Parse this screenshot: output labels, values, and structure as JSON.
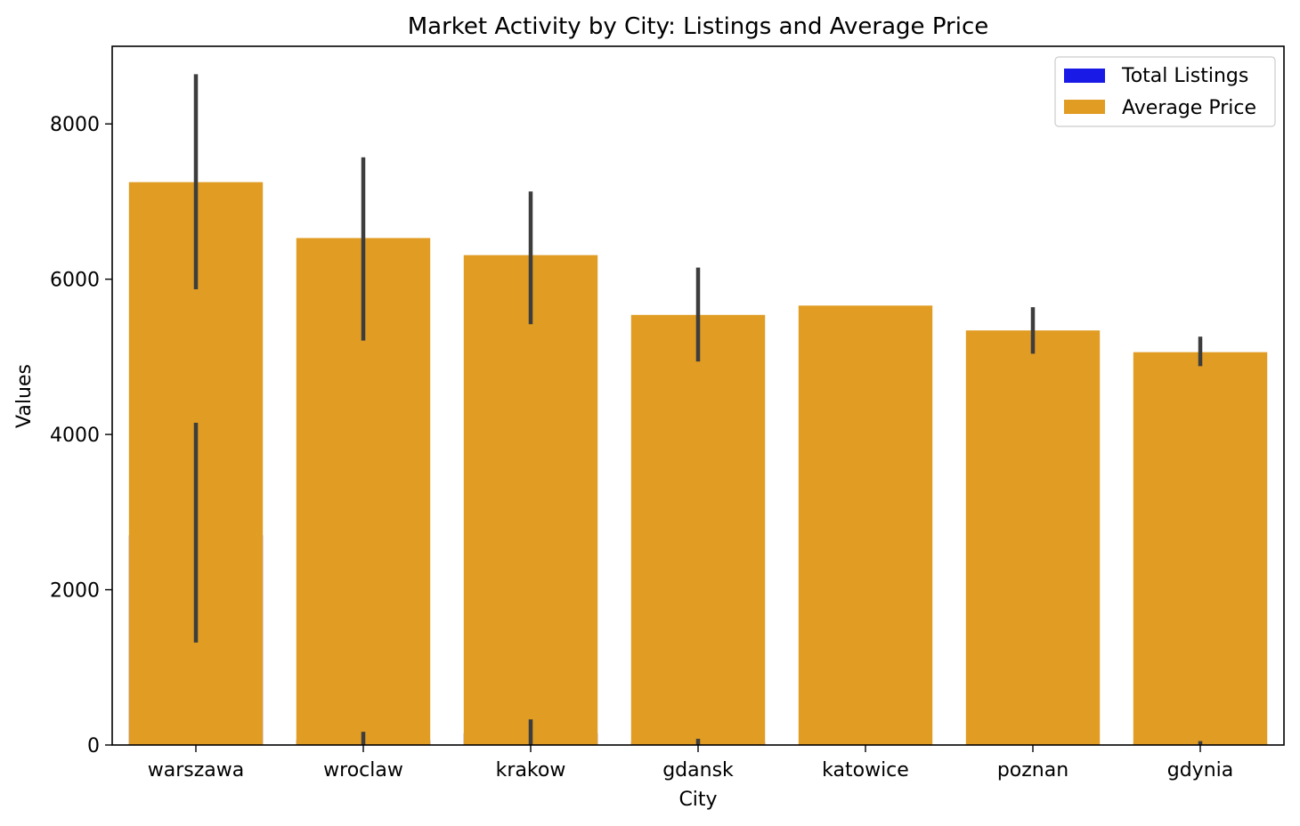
{
  "chart_data": {
    "type": "bar",
    "title": "Market Activity by City: Listings and Average Price",
    "xlabel": "City",
    "ylabel": "Values",
    "ylim": [
      0,
      9000
    ],
    "yticks": [
      0,
      2000,
      4000,
      6000,
      8000
    ],
    "categories": [
      "warszawa",
      "wroclaw",
      "krakow",
      "gdansk",
      "katowice",
      "poznan",
      "gdynia"
    ],
    "series": [
      {
        "name": "Total Listings",
        "color": "#1a1ae6",
        "values": [
          2700,
          60,
          150,
          40,
          0,
          0,
          20
        ],
        "error_low": [
          1320,
          0,
          0,
          0,
          0,
          0,
          0
        ],
        "error_high": [
          4150,
          170,
          330,
          80,
          0,
          0,
          50
        ]
      },
      {
        "name": "Average Price",
        "color": "#e09c23",
        "values": [
          7250,
          6530,
          6310,
          5540,
          5660,
          5340,
          5060
        ],
        "error_low": [
          5870,
          5210,
          5420,
          4940,
          5660,
          5040,
          4880
        ],
        "error_high": [
          8640,
          7570,
          7130,
          6150,
          5660,
          5640,
          5260
        ]
      }
    ],
    "legend": {
      "position": "top-right",
      "entries": [
        "Total Listings",
        "Average Price"
      ]
    }
  }
}
